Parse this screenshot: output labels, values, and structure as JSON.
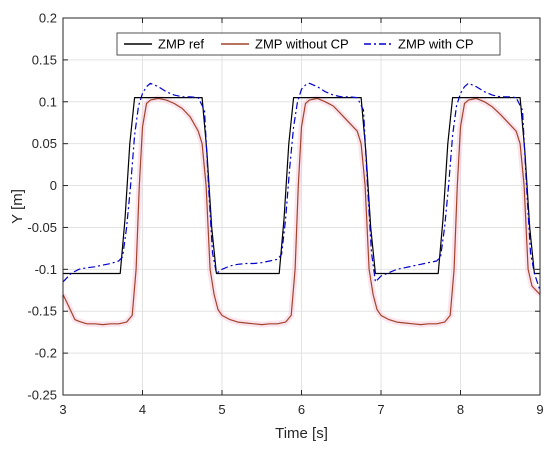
{
  "chart_data": {
    "type": "line",
    "title": "",
    "xlabel": "Time [s]",
    "ylabel": "Y [m]",
    "xlim": [
      3,
      9
    ],
    "ylim": [
      -0.25,
      0.2
    ],
    "xticks": [
      3,
      4,
      5,
      6,
      7,
      8,
      9
    ],
    "yticks": [
      -0.25,
      -0.2,
      -0.15,
      -0.1,
      -0.05,
      0,
      0.05,
      0.1,
      0.15,
      0.2
    ],
    "xtick_labels": [
      "3",
      "4",
      "5",
      "6",
      "7",
      "8",
      "9"
    ],
    "ytick_labels": [
      "-0.25",
      "-0.2",
      "-0.15",
      "-0.1",
      "-0.05",
      "0",
      "0.05",
      "0.1",
      "0.15",
      "0.2"
    ],
    "grid": true,
    "legend_position": "top",
    "series": [
      {
        "name": "ZMP ref",
        "color": "#000000",
        "style": "solid",
        "x": [
          3.0,
          3.72,
          3.78,
          3.84,
          3.9,
          4.75,
          4.81,
          4.87,
          4.93,
          5.72,
          5.78,
          5.84,
          5.9,
          6.75,
          6.81,
          6.87,
          6.93,
          7.72,
          7.78,
          7.84,
          7.9,
          8.75,
          8.81,
          8.87,
          8.93,
          9.0
        ],
        "y": [
          -0.105,
          -0.105,
          -0.04,
          0.05,
          0.105,
          0.105,
          0.04,
          -0.05,
          -0.105,
          -0.105,
          -0.04,
          0.05,
          0.105,
          0.105,
          0.04,
          -0.05,
          -0.105,
          -0.105,
          -0.04,
          0.05,
          0.105,
          0.105,
          0.04,
          -0.05,
          -0.105,
          -0.105
        ]
      },
      {
        "name": "ZMP without CP",
        "color": "#a0442a",
        "style": "solid",
        "x": [
          3.0,
          3.05,
          3.1,
          3.15,
          3.2,
          3.3,
          3.4,
          3.5,
          3.6,
          3.7,
          3.8,
          3.87,
          3.92,
          3.96,
          4.0,
          4.05,
          4.1,
          4.2,
          4.3,
          4.4,
          4.5,
          4.6,
          4.7,
          4.75,
          4.8,
          4.85,
          4.9,
          4.95,
          5.0,
          5.1,
          5.2,
          5.3,
          5.4,
          5.5,
          5.6,
          5.7,
          5.8,
          5.87,
          5.92,
          5.96,
          6.0,
          6.05,
          6.1,
          6.2,
          6.3,
          6.4,
          6.5,
          6.6,
          6.7,
          6.75,
          6.8,
          6.85,
          6.9,
          6.95,
          7.0,
          7.1,
          7.2,
          7.3,
          7.4,
          7.5,
          7.6,
          7.7,
          7.8,
          7.87,
          7.92,
          7.96,
          8.0,
          8.05,
          8.1,
          8.2,
          8.3,
          8.4,
          8.5,
          8.6,
          8.7,
          8.75,
          8.8,
          8.85,
          8.9,
          8.95,
          9.0
        ],
        "y": [
          -0.13,
          -0.14,
          -0.15,
          -0.16,
          -0.162,
          -0.165,
          -0.165,
          -0.166,
          -0.165,
          -0.165,
          -0.163,
          -0.155,
          -0.1,
          0.0,
          0.07,
          0.098,
          0.102,
          0.104,
          0.102,
          0.098,
          0.092,
          0.082,
          0.065,
          0.05,
          0.0,
          -0.1,
          -0.13,
          -0.148,
          -0.155,
          -0.16,
          -0.163,
          -0.164,
          -0.165,
          -0.166,
          -0.165,
          -0.165,
          -0.163,
          -0.155,
          -0.1,
          0.0,
          0.07,
          0.098,
          0.102,
          0.104,
          0.1,
          0.095,
          0.085,
          0.075,
          0.065,
          0.05,
          0.0,
          -0.1,
          -0.13,
          -0.148,
          -0.155,
          -0.16,
          -0.163,
          -0.164,
          -0.165,
          -0.166,
          -0.165,
          -0.165,
          -0.163,
          -0.155,
          -0.1,
          0.0,
          0.07,
          0.098,
          0.102,
          0.104,
          0.1,
          0.094,
          0.085,
          0.075,
          0.065,
          0.05,
          0.0,
          -0.1,
          -0.12,
          -0.125,
          -0.13
        ]
      },
      {
        "name": "ZMP with CP",
        "color": "#0000cc",
        "style": "dashdot",
        "x": [
          3.0,
          3.05,
          3.1,
          3.2,
          3.3,
          3.4,
          3.5,
          3.6,
          3.7,
          3.75,
          3.8,
          3.85,
          3.9,
          3.95,
          4.0,
          4.05,
          4.1,
          4.2,
          4.3,
          4.4,
          4.5,
          4.6,
          4.7,
          4.78,
          4.83,
          4.88,
          4.93,
          5.0,
          5.1,
          5.2,
          5.3,
          5.4,
          5.5,
          5.6,
          5.7,
          5.75,
          5.8,
          5.85,
          5.9,
          5.95,
          6.0,
          6.05,
          6.1,
          6.2,
          6.3,
          6.4,
          6.5,
          6.6,
          6.7,
          6.78,
          6.83,
          6.88,
          6.93,
          7.0,
          7.1,
          7.2,
          7.3,
          7.4,
          7.5,
          7.6,
          7.7,
          7.75,
          7.8,
          7.85,
          7.9,
          7.95,
          8.0,
          8.05,
          8.1,
          8.2,
          8.3,
          8.4,
          8.5,
          8.6,
          8.7,
          8.78,
          8.83,
          8.88,
          8.93,
          9.0
        ],
        "y": [
          -0.115,
          -0.11,
          -0.105,
          -0.1,
          -0.098,
          -0.097,
          -0.095,
          -0.093,
          -0.09,
          -0.085,
          -0.05,
          0.0,
          0.06,
          0.095,
          0.11,
          0.118,
          0.122,
          0.118,
          0.112,
          0.108,
          0.106,
          0.106,
          0.105,
          0.09,
          0.0,
          -0.08,
          -0.105,
          -0.1,
          -0.096,
          -0.094,
          -0.093,
          -0.093,
          -0.092,
          -0.09,
          -0.088,
          -0.082,
          -0.04,
          0.02,
          0.07,
          0.1,
          0.115,
          0.12,
          0.122,
          0.118,
          0.112,
          0.108,
          0.106,
          0.106,
          0.105,
          0.09,
          0.0,
          -0.08,
          -0.115,
          -0.108,
          -0.104,
          -0.1,
          -0.098,
          -0.096,
          -0.094,
          -0.092,
          -0.09,
          -0.085,
          -0.05,
          0.0,
          0.06,
          0.095,
          0.11,
          0.118,
          0.122,
          0.118,
          0.112,
          0.108,
          0.106,
          0.106,
          0.105,
          0.09,
          0.0,
          -0.08,
          -0.105,
          -0.125
        ]
      }
    ]
  }
}
